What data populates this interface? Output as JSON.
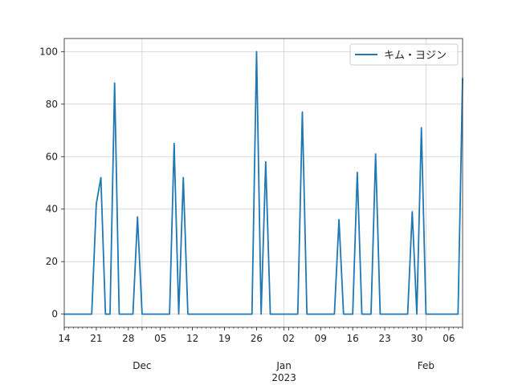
{
  "chart_data": {
    "type": "line",
    "title": "",
    "xlabel": "",
    "ylabel": "",
    "x_start": "2022-11-14",
    "x_end": "2023-02-09",
    "ylim": [
      -5,
      105
    ],
    "yticks": [
      0,
      20,
      40,
      60,
      80,
      100
    ],
    "grid": true,
    "legend_position": "top-right",
    "color": "#1f77b4",
    "x_ticks": [
      {
        "date": "2022-11-14",
        "label": "14"
      },
      {
        "date": "2022-11-21",
        "label": "21"
      },
      {
        "date": "2022-11-28",
        "label": "28"
      },
      {
        "date": "2022-12-05",
        "label": "05"
      },
      {
        "date": "2022-12-12",
        "label": "12"
      },
      {
        "date": "2022-12-19",
        "label": "19"
      },
      {
        "date": "2022-12-26",
        "label": "26"
      },
      {
        "date": "2023-01-02",
        "label": "02"
      },
      {
        "date": "2023-01-09",
        "label": "09"
      },
      {
        "date": "2023-01-16",
        "label": "16"
      },
      {
        "date": "2023-01-23",
        "label": "23"
      },
      {
        "date": "2023-01-30",
        "label": "30"
      },
      {
        "date": "2023-02-06",
        "label": "06"
      }
    ],
    "month_labels": [
      {
        "date": "2022-12-01",
        "label": "Dec",
        "sub": ""
      },
      {
        "date": "2023-01-01",
        "label": "Jan",
        "sub": "2023"
      },
      {
        "date": "2023-02-01",
        "label": "Feb",
        "sub": ""
      }
    ],
    "series": [
      {
        "name": "キム・ヨジン",
        "points": [
          [
            "2022-11-14",
            0
          ],
          [
            "2022-11-20",
            0
          ],
          [
            "2022-11-21",
            42
          ],
          [
            "2022-11-22",
            52
          ],
          [
            "2022-11-23",
            0
          ],
          [
            "2022-11-24",
            0
          ],
          [
            "2022-11-25",
            88
          ],
          [
            "2022-11-26",
            0
          ],
          [
            "2022-11-29",
            0
          ],
          [
            "2022-11-30",
            37
          ],
          [
            "2022-12-01",
            0
          ],
          [
            "2022-12-07",
            0
          ],
          [
            "2022-12-08",
            65
          ],
          [
            "2022-12-09",
            0
          ],
          [
            "2022-12-10",
            52
          ],
          [
            "2022-12-11",
            0
          ],
          [
            "2022-12-25",
            0
          ],
          [
            "2022-12-26",
            100
          ],
          [
            "2022-12-27",
            0
          ],
          [
            "2022-12-28",
            58
          ],
          [
            "2022-12-29",
            0
          ],
          [
            "2023-01-04",
            0
          ],
          [
            "2023-01-05",
            77
          ],
          [
            "2023-01-06",
            0
          ],
          [
            "2023-01-12",
            0
          ],
          [
            "2023-01-13",
            36
          ],
          [
            "2023-01-14",
            0
          ],
          [
            "2023-01-16",
            0
          ],
          [
            "2023-01-17",
            54
          ],
          [
            "2023-01-18",
            0
          ],
          [
            "2023-01-20",
            0
          ],
          [
            "2023-01-21",
            61
          ],
          [
            "2023-01-22",
            0
          ],
          [
            "2023-01-28",
            0
          ],
          [
            "2023-01-29",
            39
          ],
          [
            "2023-01-30",
            0
          ],
          [
            "2023-01-31",
            71
          ],
          [
            "2023-02-01",
            0
          ],
          [
            "2023-02-08",
            0
          ],
          [
            "2023-02-09",
            90
          ]
        ]
      }
    ]
  }
}
